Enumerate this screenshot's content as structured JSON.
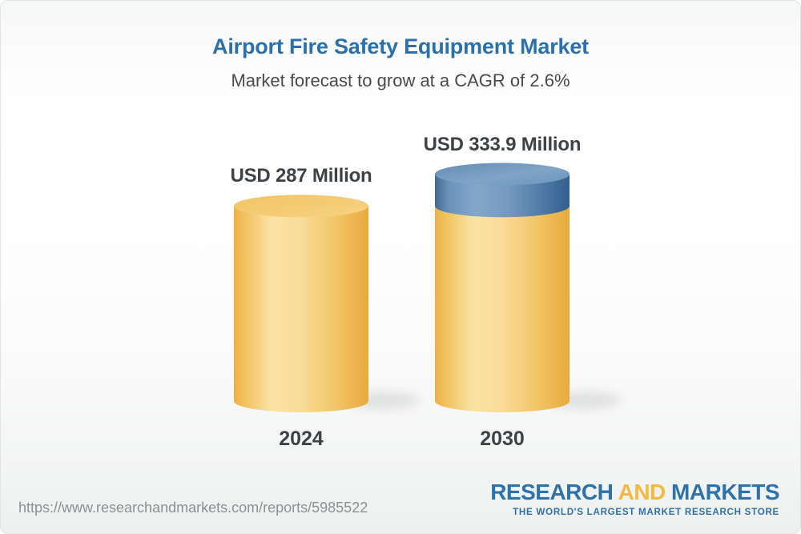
{
  "chart_data": {
    "type": "bar",
    "subtype": "3d-cylinder",
    "title": "Airport Fire Safety Equipment Market",
    "subtitle": "Market forecast to grow at a CAGR of 2.6%",
    "cagr_percent": 2.6,
    "categories": [
      "2024",
      "2030"
    ],
    "values": [
      287,
      333.9
    ],
    "value_labels": [
      "USD 287 Million",
      "USD 333.9 Million"
    ],
    "unit": "USD Million",
    "legend": "none",
    "grid": false,
    "colors": {
      "base_segment": "#F5C869",
      "growth_segment": "#6B92B9",
      "title_blue": "#2B70A8",
      "label_dark": "#3E4247"
    },
    "notes": "2030 cylinder shows growth increment over 2024 as a blue cap segment"
  },
  "footer": {
    "url": "https://www.researchandmarkets.com/reports/5985522",
    "logo": {
      "word1": "RESEARCH",
      "word2": "AND",
      "word3": "MARKETS",
      "tagline": "THE WORLD'S LARGEST MARKET RESEARCH STORE"
    }
  }
}
